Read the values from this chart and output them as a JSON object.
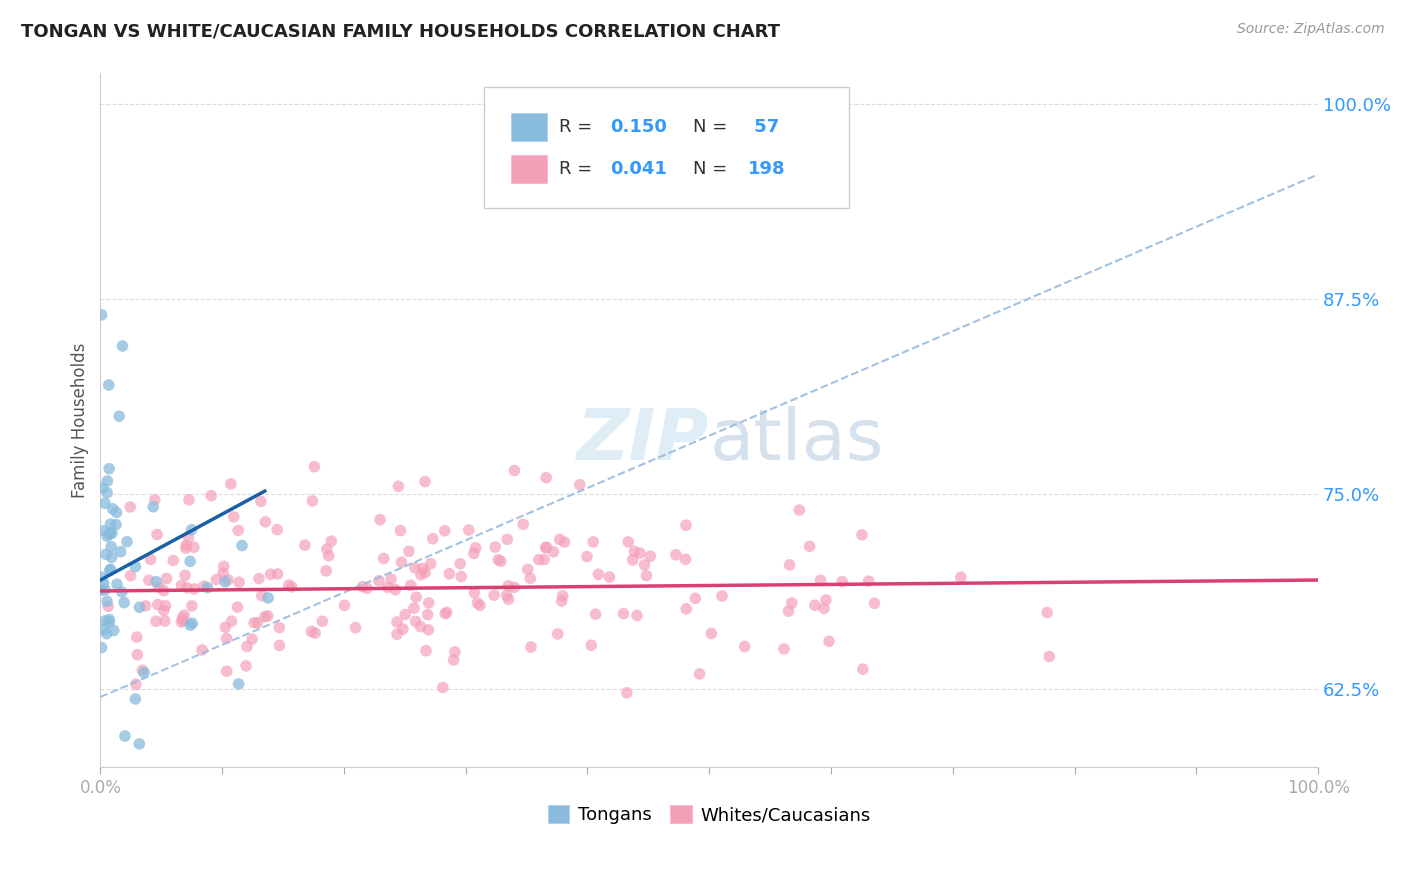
{
  "title": "TONGAN VS WHITE/CAUCASIAN FAMILY HOUSEHOLDS CORRELATION CHART",
  "source_text": "Source: ZipAtlas.com",
  "ylabel": "Family Households",
  "ytick_labels": [
    "62.5%",
    "75.0%",
    "87.5%",
    "100.0%"
  ],
  "ytick_values": [
    0.625,
    0.75,
    0.875,
    1.0
  ],
  "xlim": [
    0.0,
    1.0
  ],
  "ylim": [
    0.575,
    1.02
  ],
  "legend_label_blue": "Tongans",
  "legend_label_pink": "Whites/Caucasians",
  "blue_color": "#88bbdd",
  "pink_color": "#f4a0b8",
  "blue_line_color": "#1a5fa8",
  "pink_line_color": "#d94070",
  "dashed_line_color": "#99bbdd",
  "watermark_color": "#c5dff0",
  "grid_color": "#dddddd",
  "spine_color": "#cccccc",
  "title_color": "#222222",
  "source_color": "#999999",
  "ytick_color": "#3399ff",
  "legend_R_color": "#333333",
  "legend_val_color": "#3399ff"
}
